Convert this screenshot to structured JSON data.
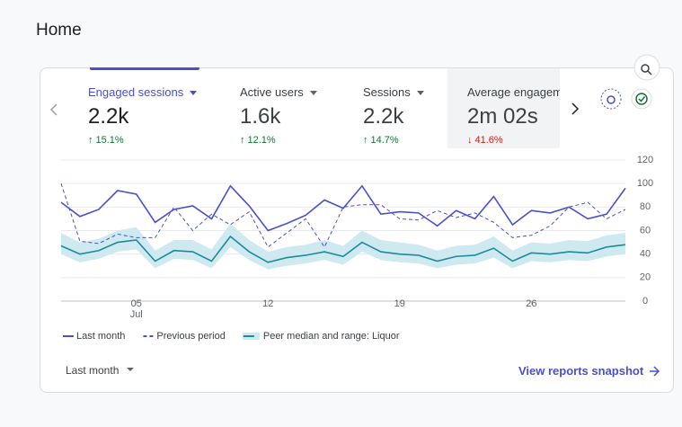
{
  "header": {
    "title": "Home"
  },
  "tabs": [
    {
      "label": "Engaged sessions",
      "value": "2.2k",
      "change": "15.1%",
      "direction": "up",
      "selected": true
    },
    {
      "label": "Active users",
      "value": "1.6k",
      "change": "12.1%",
      "direction": "up"
    },
    {
      "label": "Sessions",
      "value": "2.2k",
      "change": "14.7%",
      "direction": "up"
    },
    {
      "label": "Average engagem",
      "value": "2m 02s",
      "change": "41.6%",
      "direction": "down",
      "highlighted": true
    }
  ],
  "chart_data": {
    "type": "line",
    "categories": [
      null,
      null,
      null,
      null,
      "05",
      null,
      null,
      null,
      null,
      null,
      null,
      "12",
      null,
      null,
      null,
      null,
      null,
      null,
      "19",
      null,
      null,
      null,
      null,
      null,
      null,
      "26",
      null,
      null,
      null,
      null,
      null
    ],
    "x_month": "Jul",
    "ylim": [
      0,
      120
    ],
    "yticks": [
      0,
      20,
      40,
      60,
      80,
      100,
      120
    ],
    "grid": true,
    "series": [
      {
        "name": "Last month",
        "color": "#4a50c8",
        "style": "solid",
        "values": [
          84,
          72,
          78,
          94,
          91,
          67,
          78,
          81,
          70,
          98,
          81,
          60,
          66,
          73,
          86,
          79,
          98,
          74,
          76,
          75,
          64,
          77,
          70,
          89,
          65,
          77,
          75,
          80,
          70,
          74,
          96
        ]
      },
      {
        "name": "Previous period",
        "color": "#4a50c8",
        "style": "dashed",
        "values": [
          100,
          51,
          49,
          57,
          54,
          54,
          80,
          60,
          74,
          65,
          76,
          46,
          58,
          70,
          46,
          80,
          82,
          82,
          70,
          69,
          77,
          71,
          75,
          67,
          54,
          56,
          64,
          80,
          84,
          70,
          78
        ]
      },
      {
        "name": "Peer median and range: Liquor",
        "color": "#1f8b99",
        "style": "solid",
        "band_color": "#cfe9f1",
        "values": [
          47,
          40,
          43,
          50,
          52,
          34,
          43,
          42,
          34,
          55,
          42,
          33,
          37,
          39,
          42,
          38,
          50,
          42,
          40,
          39,
          34,
          38,
          39,
          45,
          34,
          41,
          40,
          42,
          41,
          46,
          48
        ],
        "range_low": [
          40,
          33,
          36,
          42,
          44,
          28,
          36,
          35,
          28,
          46,
          35,
          27,
          30,
          32,
          35,
          31,
          42,
          35,
          33,
          32,
          28,
          31,
          32,
          37,
          28,
          34,
          33,
          35,
          34,
          38,
          40
        ],
        "range_high": [
          58,
          50,
          53,
          60,
          63,
          43,
          52,
          52,
          44,
          66,
          52,
          42,
          46,
          48,
          52,
          47,
          60,
          52,
          50,
          48,
          43,
          47,
          48,
          55,
          43,
          50,
          49,
          52,
          51,
          56,
          58
        ]
      }
    ]
  },
  "footer": {
    "period": "Last month",
    "link": "View reports snapshot"
  }
}
